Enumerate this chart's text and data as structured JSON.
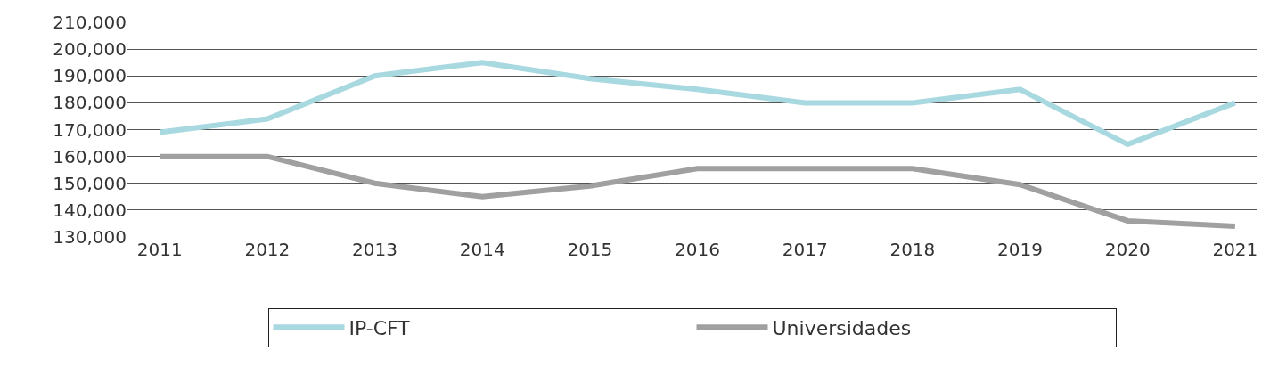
{
  "chart_data": {
    "type": "line",
    "categories": [
      "2011",
      "2012",
      "2013",
      "2014",
      "2015",
      "2016",
      "2017",
      "2018",
      "2019",
      "2020",
      "2021"
    ],
    "series": [
      {
        "name": "IP-CFT",
        "color": "#a8d8e0",
        "values": [
          169000,
          174000,
          190000,
          195000,
          189000,
          185000,
          180000,
          180000,
          185000,
          164500,
          180000
        ]
      },
      {
        "name": "Universidades",
        "color": "#a0a0a0",
        "values": [
          160000,
          160000,
          150000,
          145000,
          149000,
          155500,
          155500,
          155500,
          149500,
          136000,
          134000
        ]
      }
    ],
    "ylim": [
      130000,
      210000
    ],
    "yticks": [
      {
        "value": 130000,
        "label": "130,000"
      },
      {
        "value": 140000,
        "label": "140,000"
      },
      {
        "value": 150000,
        "label": "150,000"
      },
      {
        "value": 160000,
        "label": "160,000"
      },
      {
        "value": 170000,
        "label": "170,000"
      },
      {
        "value": 180000,
        "label": "180,000"
      },
      {
        "value": 190000,
        "label": "190,000"
      },
      {
        "value": 200000,
        "label": "200,000"
      },
      {
        "value": 210000,
        "label": "210,000"
      }
    ],
    "grid": "y",
    "legend": "bottom",
    "marker": "none",
    "line_style": "solid"
  }
}
